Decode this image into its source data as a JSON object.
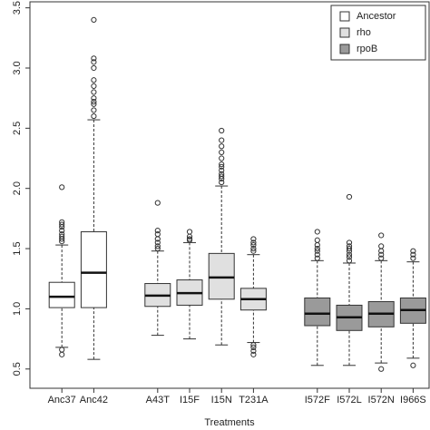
{
  "chart_data": {
    "type": "boxplot",
    "x_label": "Treatments",
    "categories": [
      "Anc37",
      "Anc42",
      null,
      "A43T",
      "I15F",
      "I15N",
      "T231A",
      null,
      "I572F",
      "I572L",
      "I572N",
      "I966S"
    ],
    "ylim": [
      0.34,
      3.55
    ],
    "yticks": [
      0.5,
      {
        "value": 1,
        "label": "1.0"
      },
      1.5,
      {
        "value": 2,
        "label": "2.0"
      },
      2.5,
      {
        "value": 3,
        "label": "3.0"
      },
      3.5
    ],
    "legend": "top-right",
    "series": [
      {
        "name": "Ancestor",
        "color": "#ffffff",
        "min": [
          0.68,
          0.58,
          null,
          null,
          null,
          null,
          null,
          null,
          null,
          null,
          null,
          null
        ],
        "q1": [
          1.01,
          1.01,
          null,
          null,
          null,
          null,
          null,
          null,
          null,
          null,
          null,
          null
        ],
        "median": [
          1.1,
          1.3,
          null,
          null,
          null,
          null,
          null,
          null,
          null,
          null,
          null,
          null
        ],
        "q3": [
          1.22,
          1.64,
          null,
          null,
          null,
          null,
          null,
          null,
          null,
          null,
          null,
          null
        ],
        "max": [
          1.53,
          2.57,
          null,
          null,
          null,
          null,
          null,
          null,
          null,
          null,
          null,
          null
        ],
        "outliers": [
          [
            0.62,
            0.66,
            1.56,
            1.58,
            1.6,
            1.62,
            1.65,
            1.68,
            1.7,
            1.72,
            2.01
          ],
          [
            2.6,
            2.65,
            2.7,
            2.72,
            2.75,
            2.8,
            2.85,
            2.9,
            3.0,
            3.05,
            3.08,
            3.4
          ],
          null,
          null,
          null,
          null,
          null,
          null,
          null,
          null,
          null,
          null
        ]
      },
      {
        "name": "rho",
        "color": "#e0e0e0",
        "min": [
          null,
          null,
          null,
          0.78,
          0.75,
          0.7,
          0.72,
          null,
          null,
          null,
          null,
          null
        ],
        "q1": [
          null,
          null,
          null,
          1.02,
          1.03,
          1.08,
          0.99,
          null,
          null,
          null,
          null,
          null
        ],
        "median": [
          null,
          null,
          null,
          1.11,
          1.13,
          1.26,
          1.08,
          null,
          null,
          null,
          null,
          null
        ],
        "q3": [
          null,
          null,
          null,
          1.21,
          1.24,
          1.46,
          1.17,
          null,
          null,
          null,
          null,
          null
        ],
        "max": [
          null,
          null,
          null,
          1.48,
          1.55,
          2.02,
          1.45,
          null,
          null,
          null,
          null,
          null
        ],
        "outliers": [
          null,
          null,
          null,
          [
            1.5,
            1.52,
            1.55,
            1.58,
            1.62,
            1.65,
            1.88
          ],
          [
            1.57,
            1.58,
            1.6,
            1.64
          ],
          [
            2.05,
            2.08,
            2.1,
            2.12,
            2.15,
            2.18,
            2.2,
            2.25,
            2.3,
            2.35,
            2.4,
            2.48
          ],
          [
            0.62,
            0.65,
            0.68,
            0.7,
            1.48,
            1.5,
            1.53,
            1.55,
            1.58
          ],
          null,
          null,
          null,
          null,
          null
        ]
      },
      {
        "name": "rpoB",
        "color": "#9a9a9a",
        "min": [
          null,
          null,
          null,
          null,
          null,
          null,
          null,
          null,
          0.53,
          0.53,
          0.55,
          0.59
        ],
        "q1": [
          null,
          null,
          null,
          null,
          null,
          null,
          null,
          null,
          0.86,
          0.82,
          0.85,
          0.88
        ],
        "median": [
          null,
          null,
          null,
          null,
          null,
          null,
          null,
          null,
          0.96,
          0.93,
          0.96,
          0.99
        ],
        "q3": [
          null,
          null,
          null,
          null,
          null,
          null,
          null,
          null,
          1.09,
          1.03,
          1.06,
          1.09
        ],
        "max": [
          null,
          null,
          null,
          null,
          null,
          null,
          null,
          null,
          1.4,
          1.38,
          1.4,
          1.39
        ],
        "outliers": [
          null,
          null,
          null,
          null,
          null,
          null,
          null,
          null,
          [
            1.42,
            1.45,
            1.48,
            1.5,
            1.53,
            1.57,
            1.64
          ],
          [
            1.4,
            1.43,
            1.45,
            1.48,
            1.5,
            1.52,
            1.55,
            1.93
          ],
          [
            0.5,
            1.42,
            1.45,
            1.48,
            1.52,
            1.61
          ],
          [
            0.53,
            1.42,
            1.45,
            1.48
          ]
        ]
      }
    ]
  }
}
